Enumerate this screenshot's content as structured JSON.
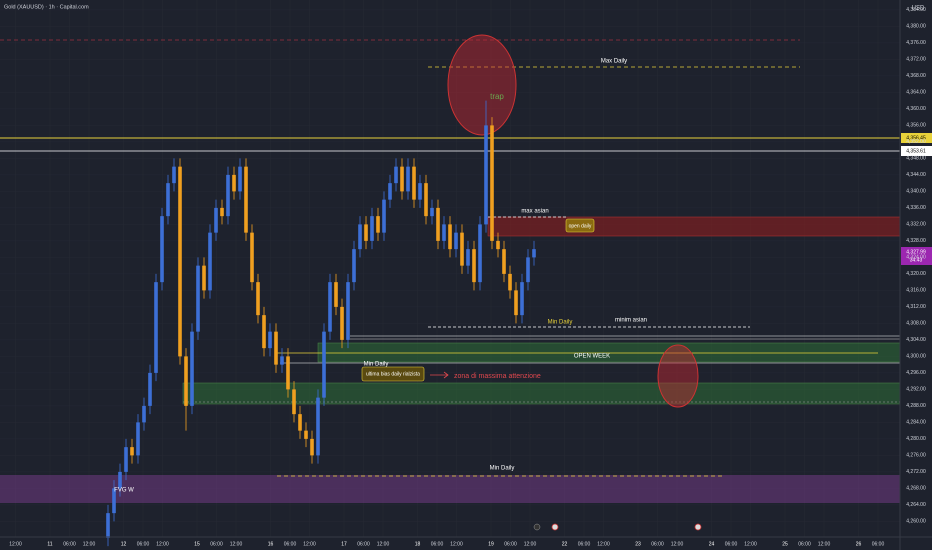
{
  "chart_data": {
    "type": "candlestick",
    "title": "Gold (XAUUSD) · 1h · Capital.com",
    "currency": "USD",
    "colors": {
      "up": "#3d6fd6",
      "down": "#f0a020"
    },
    "open": [
      4256,
      4262,
      4268,
      4272,
      4278,
      4276,
      4284,
      4288,
      4296,
      4318,
      4334,
      4342,
      4346,
      4300,
      4288,
      4306,
      4322,
      4316,
      4330,
      4336,
      4334,
      4344,
      4340,
      4346,
      4330,
      4318,
      4310,
      4302,
      4306,
      4298,
      4300,
      4292,
      4286,
      4282,
      4280,
      4276,
      4290,
      4306,
      4318,
      4312,
      4304,
      4318,
      4326,
      4332,
      4328,
      4334,
      4330,
      4338,
      4342,
      4346,
      4340,
      4346,
      4338,
      4342,
      4334,
      4336,
      4328,
      4332,
      4326,
      4330,
      4322,
      4326,
      4318,
      4332,
      4356,
      4328,
      4326,
      4320,
      4316,
      4310,
      4318,
      4324
    ],
    "high": [
      4264,
      4270,
      4274,
      4280,
      4280,
      4286,
      4290,
      4298,
      4320,
      4336,
      4344,
      4348,
      4348,
      4302,
      4308,
      4324,
      4324,
      4332,
      4338,
      4338,
      4346,
      4346,
      4348,
      4348,
      4332,
      4320,
      4312,
      4308,
      4308,
      4302,
      4302,
      4294,
      4288,
      4284,
      4282,
      4292,
      4308,
      4320,
      4320,
      4314,
      4320,
      4328,
      4334,
      4334,
      4336,
      4336,
      4340,
      4344,
      4348,
      4348,
      4348,
      4348,
      4344,
      4344,
      4338,
      4338,
      4334,
      4334,
      4332,
      4332,
      4328,
      4328,
      4334,
      4362,
      4358,
      4330,
      4328,
      4322,
      4318,
      4320,
      4326,
      4328
    ],
    "low": [
      4254,
      4260,
      4266,
      4270,
      4274,
      4274,
      4282,
      4286,
      4294,
      4316,
      4332,
      4340,
      4298,
      4282,
      4286,
      4304,
      4314,
      4314,
      4328,
      4332,
      4332,
      4338,
      4338,
      4328,
      4316,
      4308,
      4300,
      4300,
      4296,
      4296,
      4290,
      4284,
      4280,
      4278,
      4274,
      4274,
      4288,
      4304,
      4310,
      4302,
      4302,
      4316,
      4324,
      4326,
      4326,
      4328,
      4328,
      4336,
      4340,
      4338,
      4338,
      4336,
      4336,
      4332,
      4332,
      4326,
      4326,
      4324,
      4324,
      4320,
      4320,
      4316,
      4316,
      4330,
      4326,
      4324,
      4318,
      4314,
      4308,
      4308,
      4316,
      4322
    ],
    "close": [
      4262,
      4268,
      4272,
      4278,
      4276,
      4284,
      4288,
      4296,
      4318,
      4334,
      4342,
      4346,
      4300,
      4288,
      4306,
      4322,
      4316,
      4330,
      4336,
      4334,
      4344,
      4340,
      4346,
      4330,
      4318,
      4310,
      4302,
      4306,
      4298,
      4300,
      4292,
      4286,
      4282,
      4280,
      4276,
      4290,
      4306,
      4318,
      4312,
      4304,
      4318,
      4326,
      4332,
      4328,
      4334,
      4330,
      4338,
      4342,
      4346,
      4340,
      4346,
      4338,
      4342,
      4334,
      4336,
      4328,
      4332,
      4326,
      4330,
      4322,
      4326,
      4318,
      4332,
      4356,
      4328,
      4326,
      4320,
      4316,
      4310,
      4318,
      4324,
      4326
    ],
    "ylim": [
      4256.7,
      4386.4
    ],
    "yticks": [
      {
        "value": 4260,
        "label": "4,260.00"
      },
      {
        "value": 4264,
        "label": "4,264.00"
      },
      {
        "value": 4268,
        "label": "4,268.00"
      },
      {
        "value": 4272,
        "label": "4,272.00"
      },
      {
        "value": 4276,
        "label": "4,276.00"
      },
      {
        "value": 4280,
        "label": "4,280.00"
      },
      {
        "value": 4284,
        "label": "4,284.00"
      },
      {
        "value": 4288,
        "label": "4,288.00"
      },
      {
        "value": 4292,
        "label": "4,292.00"
      },
      {
        "value": 4296,
        "label": "4,296.00"
      },
      {
        "value": 4300,
        "label": "4,300.00"
      },
      {
        "value": 4304,
        "label": "4,304.00"
      },
      {
        "value": 4308,
        "label": "4,308.00"
      },
      {
        "value": 4312,
        "label": "4,312.00"
      },
      {
        "value": 4316,
        "label": "4,316.00"
      },
      {
        "value": 4320,
        "label": "4,320.00"
      },
      {
        "value": 4324,
        "label": "4,324.00"
      },
      {
        "value": 4328,
        "label": "4,328.00"
      },
      {
        "value": 4332,
        "label": "4,332.00"
      },
      {
        "value": 4336,
        "label": "4,336.00"
      },
      {
        "value": 4340,
        "label": "4,340.00"
      },
      {
        "value": 4344,
        "label": "4,344.00"
      },
      {
        "value": 4348,
        "label": "4,348.00"
      },
      {
        "value": 4352,
        "label": "4,352.00"
      },
      {
        "value": 4356,
        "label": "4,356.00"
      },
      {
        "value": 4360,
        "label": "4,360.00"
      },
      {
        "value": 4364,
        "label": "4,364.00"
      },
      {
        "value": 4368,
        "label": "4,368.00"
      },
      {
        "value": 4372,
        "label": "4,372.00"
      },
      {
        "value": 4376,
        "label": "4,376.00"
      },
      {
        "value": 4380,
        "label": "4,380.00"
      },
      {
        "value": 4384,
        "label": "4,384.00"
      }
    ],
    "x_labels": [
      "12:00",
      "11",
      "06:00",
      "12:00",
      "12",
      "06:00",
      "12:00",
      "15",
      "06:00",
      "12:00",
      "16",
      "06:00",
      "12:00",
      "17",
      "06:00",
      "12:00",
      "18",
      "06:00",
      "12:00",
      "19",
      "06:00",
      "12:00",
      "22",
      "06:00",
      "12:00",
      "23",
      "06:00",
      "12:00",
      "24",
      "06:00",
      "12:00",
      "25",
      "06:00",
      "12:00",
      "26",
      "06:00"
    ],
    "price_tags": [
      "4,356.45",
      "4,353.61",
      "4,327.99",
      "34:43"
    ],
    "annotations": [
      "Max Daily",
      "trap",
      "max asian",
      "open daily",
      "Min Daily",
      "minim asian",
      "OPEN WEEK",
      "Min Daily",
      "ultima bias daily rialzista",
      "zona di massima attenzione",
      "Min Daily",
      "FVG W"
    ]
  }
}
